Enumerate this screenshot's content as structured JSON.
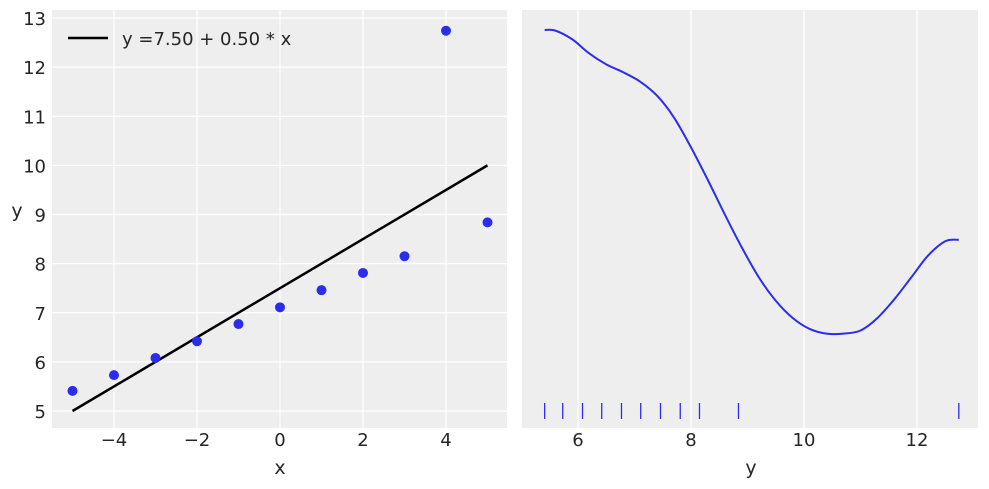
{
  "chart_data": [
    {
      "type": "scatter",
      "title": "",
      "xlabel": "x",
      "ylabel": "y",
      "xlim": [
        -5.5,
        5.5
      ],
      "ylim": [
        4.65,
        13.15
      ],
      "grid": true,
      "legend_position": "upper left",
      "x_ticks": [
        "−4",
        "−2",
        "0",
        "2",
        "4"
      ],
      "x_tick_values": [
        -4,
        -2,
        0,
        2,
        4
      ],
      "y_ticks": [
        "5",
        "6",
        "7",
        "8",
        "9",
        "10",
        "11",
        "12",
        "13"
      ],
      "y_tick_values": [
        5,
        6,
        7,
        8,
        9,
        10,
        11,
        12,
        13
      ],
      "series": [
        {
          "name": "data",
          "kind": "scatter",
          "color": "#2a2eec",
          "x": [
            -5,
            -4,
            -3,
            -2,
            -1,
            0,
            1,
            2,
            3,
            4,
            5
          ],
          "y": [
            5.41,
            5.73,
            6.08,
            6.42,
            6.77,
            7.11,
            7.46,
            7.81,
            8.15,
            12.74,
            8.84
          ]
        },
        {
          "name": "y =7.50 + 0.50 * x",
          "kind": "line",
          "color": "#000000",
          "x": [
            -5,
            5
          ],
          "y": [
            5.0,
            10.0
          ]
        }
      ],
      "legend": [
        "y =7.50 + 0.50 * x"
      ]
    },
    {
      "type": "line",
      "title": "",
      "xlabel": "y",
      "ylabel": "",
      "xlim": [
        5.0,
        13.1
      ],
      "grid": true,
      "x_ticks": [
        "6",
        "8",
        "10",
        "12"
      ],
      "x_tick_values": [
        6,
        8,
        10,
        12
      ],
      "y_ticks": [],
      "series": [
        {
          "name": "kde",
          "kind": "line",
          "color": "#2a2eec",
          "x": [
            5.41,
            5.6,
            5.9,
            6.2,
            6.5,
            6.8,
            7.1,
            7.4,
            7.7,
            8.0,
            8.3,
            8.6,
            8.9,
            9.2,
            9.5,
            9.8,
            10.1,
            10.4,
            10.7,
            11.0,
            11.3,
            11.6,
            11.9,
            12.2,
            12.5,
            12.74
          ],
          "density_relative": [
            1.0,
            0.998,
            0.97,
            0.925,
            0.89,
            0.865,
            0.835,
            0.79,
            0.72,
            0.625,
            0.52,
            0.41,
            0.305,
            0.21,
            0.135,
            0.08,
            0.045,
            0.03,
            0.03,
            0.04,
            0.08,
            0.14,
            0.21,
            0.28,
            0.325,
            0.33
          ]
        },
        {
          "name": "rug",
          "kind": "rug",
          "color": "#2a2eec",
          "x": [
            5.41,
            5.73,
            6.08,
            6.42,
            6.77,
            7.11,
            7.46,
            7.81,
            8.15,
            8.84,
            12.74
          ]
        }
      ]
    }
  ]
}
